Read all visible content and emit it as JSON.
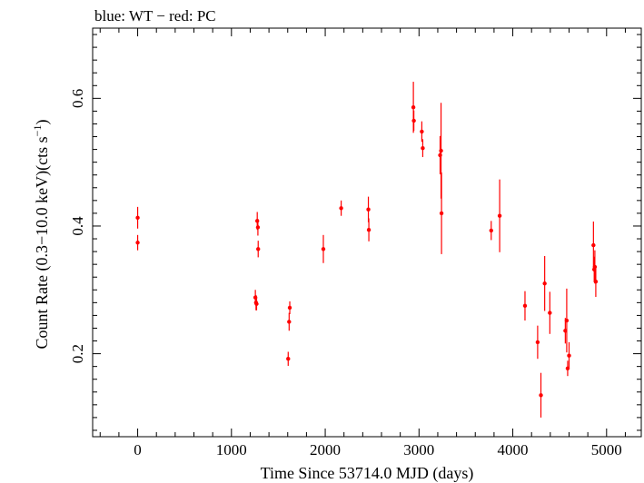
{
  "chart_data": {
    "type": "scatter",
    "title": "blue: WT − red: PC",
    "xlabel": "Time Since 53714.0 MJD (days)",
    "ylabel": "Count Rate (0.3−10.0 keV)(cts s",
    "ylabel_sup": "−1",
    "ylabel_tail": ")",
    "xlim": [
      -480,
      5370
    ],
    "ylim": [
      0.07,
      0.71
    ],
    "x_ticks": [
      0,
      1000,
      2000,
      3000,
      4000,
      5000
    ],
    "y_ticks": [
      0.2,
      0.4,
      0.6
    ],
    "y_tick_labels": [
      "0.2",
      "0.4",
      "0.6"
    ],
    "grid": false,
    "series": [
      {
        "color": "#ff0000",
        "points": [
          {
            "x": 0,
            "y": 0.413,
            "err": 0.017
          },
          {
            "x": 0,
            "y": 0.374,
            "err": 0.012
          },
          {
            "x": 1255,
            "y": 0.288,
            "err": 0.012
          },
          {
            "x": 1262,
            "y": 0.28,
            "err": 0.012
          },
          {
            "x": 1268,
            "y": 0.278,
            "err": 0.01
          },
          {
            "x": 1275,
            "y": 0.408,
            "err": 0.014
          },
          {
            "x": 1282,
            "y": 0.398,
            "err": 0.013
          },
          {
            "x": 1285,
            "y": 0.364,
            "err": 0.013
          },
          {
            "x": 1605,
            "y": 0.192,
            "err": 0.011
          },
          {
            "x": 1615,
            "y": 0.25,
            "err": 0.014
          },
          {
            "x": 1622,
            "y": 0.272,
            "err": 0.01
          },
          {
            "x": 1980,
            "y": 0.364,
            "err": 0.022
          },
          {
            "x": 2170,
            "y": 0.428,
            "err": 0.012
          },
          {
            "x": 2460,
            "y": 0.426,
            "err": 0.02
          },
          {
            "x": 2465,
            "y": 0.394,
            "err": 0.018
          },
          {
            "x": 2940,
            "y": 0.586,
            "err": 0.04
          },
          {
            "x": 2945,
            "y": 0.565,
            "err": 0.016
          },
          {
            "x": 3030,
            "y": 0.548,
            "err": 0.016
          },
          {
            "x": 3040,
            "y": 0.522,
            "err": 0.014
          },
          {
            "x": 3225,
            "y": 0.511,
            "err": 0.03
          },
          {
            "x": 3235,
            "y": 0.518,
            "err": 0.075
          },
          {
            "x": 3240,
            "y": 0.42,
            "err": 0.064
          },
          {
            "x": 3770,
            "y": 0.393,
            "err": 0.015
          },
          {
            "x": 3860,
            "y": 0.416,
            "err": 0.057
          },
          {
            "x": 4130,
            "y": 0.275,
            "err": 0.023
          },
          {
            "x": 4265,
            "y": 0.218,
            "err": 0.026
          },
          {
            "x": 4300,
            "y": 0.135,
            "err": 0.035
          },
          {
            "x": 4340,
            "y": 0.31,
            "err": 0.043
          },
          {
            "x": 4395,
            "y": 0.264,
            "err": 0.033
          },
          {
            "x": 4560,
            "y": 0.236,
            "err": 0.02
          },
          {
            "x": 4575,
            "y": 0.252,
            "err": 0.05
          },
          {
            "x": 4585,
            "y": 0.177,
            "err": 0.012
          },
          {
            "x": 4600,
            "y": 0.197,
            "err": 0.021
          },
          {
            "x": 4860,
            "y": 0.37,
            "err": 0.037
          },
          {
            "x": 4868,
            "y": 0.332,
            "err": 0.02
          },
          {
            "x": 4875,
            "y": 0.336,
            "err": 0.026
          },
          {
            "x": 4885,
            "y": 0.313,
            "err": 0.024
          }
        ]
      }
    ]
  }
}
